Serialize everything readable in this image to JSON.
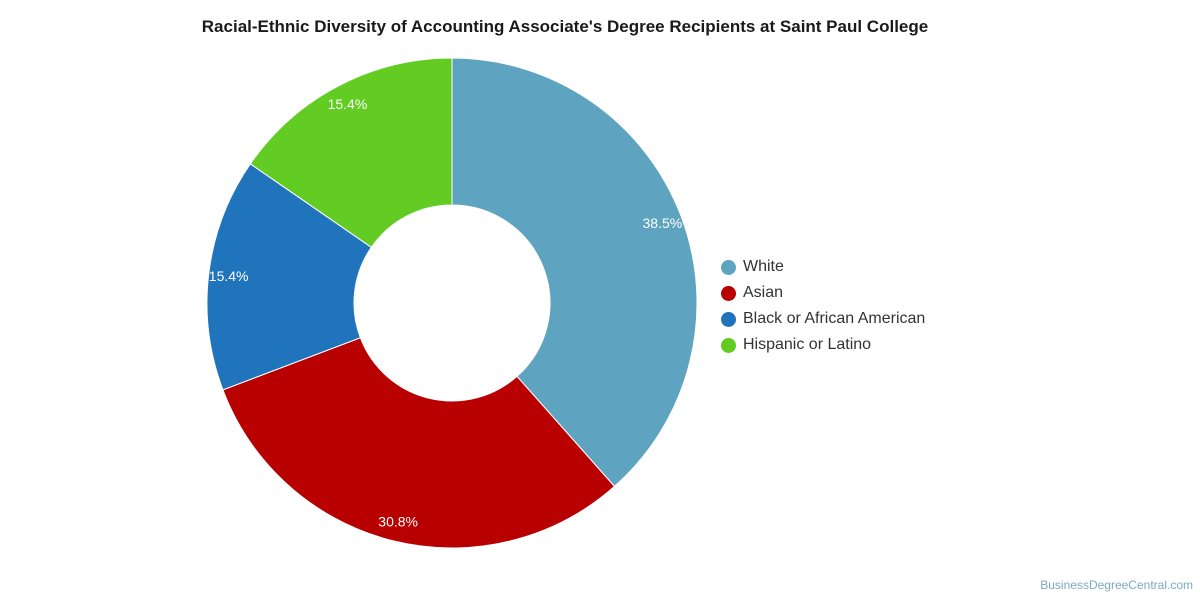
{
  "chart_data": {
    "type": "pie",
    "donut": true,
    "title": "Racial-Ethnic Diversity of Accounting Associate's Degree Recipients at Saint Paul College",
    "categories": [
      "White",
      "Asian",
      "Black or African American",
      "Hispanic or Latino"
    ],
    "values": [
      38.5,
      30.8,
      15.4,
      15.4
    ],
    "labels": [
      "38.5%",
      "30.8%",
      "15.4%",
      "15.4%"
    ],
    "colors": [
      "#5ea3c0",
      "#b80000",
      "#1f74bc",
      "#62cc23"
    ],
    "legend_position": "right"
  },
  "source": "BusinessDegreeCentral.com"
}
